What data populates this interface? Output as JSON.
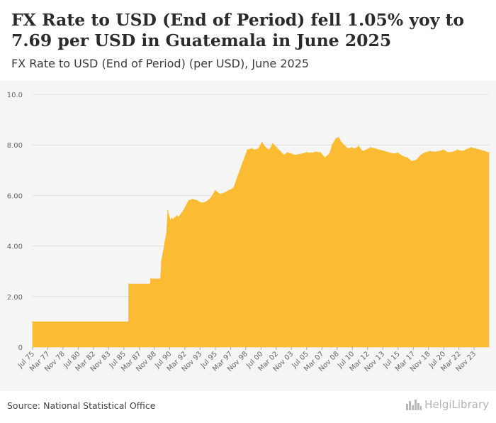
{
  "header": {
    "title": "FX Rate to USD (End of Period) fell 1.05% yoy to 7.69 per USD in Guatemala in June 2025",
    "subtitle": "FX Rate to USD (End of Period) (per USD), June 2025"
  },
  "footer": {
    "source": "Source: National Statistical Office",
    "logo_text": "HelgiLibrary",
    "logo_icon": "city-skyline-icon"
  },
  "colors": {
    "area": "#fbbc33",
    "grid": "#dddddd",
    "axis_text": "#666666"
  },
  "chart_data": {
    "type": "area",
    "title": "FX Rate to USD (End of Period) (per USD), June 2025",
    "xlabel": "",
    "ylabel": "",
    "ylim": [
      0,
      10
    ],
    "yticks": [
      0,
      2,
      4,
      6,
      8,
      10
    ],
    "ytick_labels": [
      "0",
      "2.00",
      "4.00",
      "6.00",
      "8.00",
      "10.0"
    ],
    "xlim": [
      1975.5,
      2025.45
    ],
    "x_tick_labels": [
      "Jul 75",
      "Mar 77",
      "Nov 78",
      "Jul 80",
      "Mar 82",
      "Nov 83",
      "Jul 85",
      "Mar 87",
      "Nov 88",
      "Jul 90",
      "Mar 92",
      "Nov 93",
      "Jul 95",
      "Mar 97",
      "Nov 98",
      "Jul 00",
      "Mar 02",
      "Nov 03",
      "Jul 05",
      "Mar 07",
      "Nov 08",
      "Jul 10",
      "Mar 12",
      "Nov 13",
      "Jul 15",
      "Mar 17",
      "Nov 18",
      "Jul 20",
      "Mar 22",
      "Nov 23"
    ],
    "x_tick_years": [
      1975.5,
      1977.17,
      1978.83,
      1980.5,
      1982.17,
      1983.83,
      1985.5,
      1987.17,
      1988.83,
      1990.5,
      1992.17,
      1993.83,
      1995.5,
      1997.17,
      1998.83,
      2000.5,
      2002.17,
      2003.83,
      2005.5,
      2007.17,
      2008.83,
      2010.5,
      2012.17,
      2013.83,
      2015.5,
      2017.17,
      2018.83,
      2020.5,
      2022.17,
      2023.83
    ],
    "x": [
      1975.5,
      1986.0,
      1986.01,
      1988.4,
      1988.41,
      1989.5,
      1989.6,
      1990.0,
      1990.15,
      1990.3,
      1990.5,
      1990.6,
      1990.7,
      1990.85,
      1991.0,
      1991.3,
      1991.5,
      1991.8,
      1992.0,
      1992.3,
      1992.6,
      1993.0,
      1993.5,
      1994.0,
      1994.5,
      1995.0,
      1995.5,
      1996.0,
      1996.5,
      1997.0,
      1997.5,
      1998.0,
      1998.5,
      1999.0,
      1999.5,
      1999.8,
      2000.2,
      2000.6,
      2001.0,
      2001.4,
      2001.8,
      2002.2,
      2002.6,
      2003.0,
      2003.4,
      2003.8,
      2004.2,
      2004.6,
      2005.0,
      2005.5,
      2006.0,
      2006.5,
      2007.0,
      2007.5,
      2008.0,
      2008.3,
      2008.7,
      2009.0,
      2009.3,
      2009.6,
      2010.0,
      2010.4,
      2010.8,
      2011.2,
      2011.6,
      2012.0,
      2012.5,
      2013.0,
      2013.5,
      2014.0,
      2014.5,
      2015.0,
      2015.5,
      2016.0,
      2016.5,
      2017.0,
      2017.5,
      2018.0,
      2018.5,
      2019.0,
      2019.5,
      2020.0,
      2020.5,
      2021.0,
      2021.5,
      2022.0,
      2022.5,
      2023.0,
      2023.5,
      2024.0,
      2024.5,
      2025.0,
      2025.45
    ],
    "values": [
      1.0,
      1.0,
      2.5,
      2.5,
      2.7,
      2.7,
      3.4,
      4.2,
      4.5,
      5.4,
      5.1,
      5.0,
      5.1,
      5.05,
      5.1,
      5.2,
      5.15,
      5.3,
      5.4,
      5.6,
      5.8,
      5.85,
      5.8,
      5.7,
      5.75,
      5.9,
      6.2,
      6.05,
      6.1,
      6.2,
      6.3,
      6.8,
      7.3,
      7.8,
      7.85,
      7.8,
      7.85,
      8.1,
      7.9,
      7.8,
      8.05,
      7.9,
      7.75,
      7.6,
      7.7,
      7.65,
      7.6,
      7.62,
      7.65,
      7.7,
      7.68,
      7.72,
      7.7,
      7.5,
      7.65,
      8.0,
      8.25,
      8.3,
      8.1,
      8.0,
      7.85,
      7.9,
      7.85,
      7.95,
      7.75,
      7.8,
      7.9,
      7.85,
      7.8,
      7.75,
      7.7,
      7.65,
      7.68,
      7.55,
      7.5,
      7.35,
      7.4,
      7.6,
      7.7,
      7.75,
      7.72,
      7.75,
      7.8,
      7.7,
      7.72,
      7.8,
      7.75,
      7.82,
      7.9,
      7.85,
      7.8,
      7.75,
      7.69
    ]
  }
}
